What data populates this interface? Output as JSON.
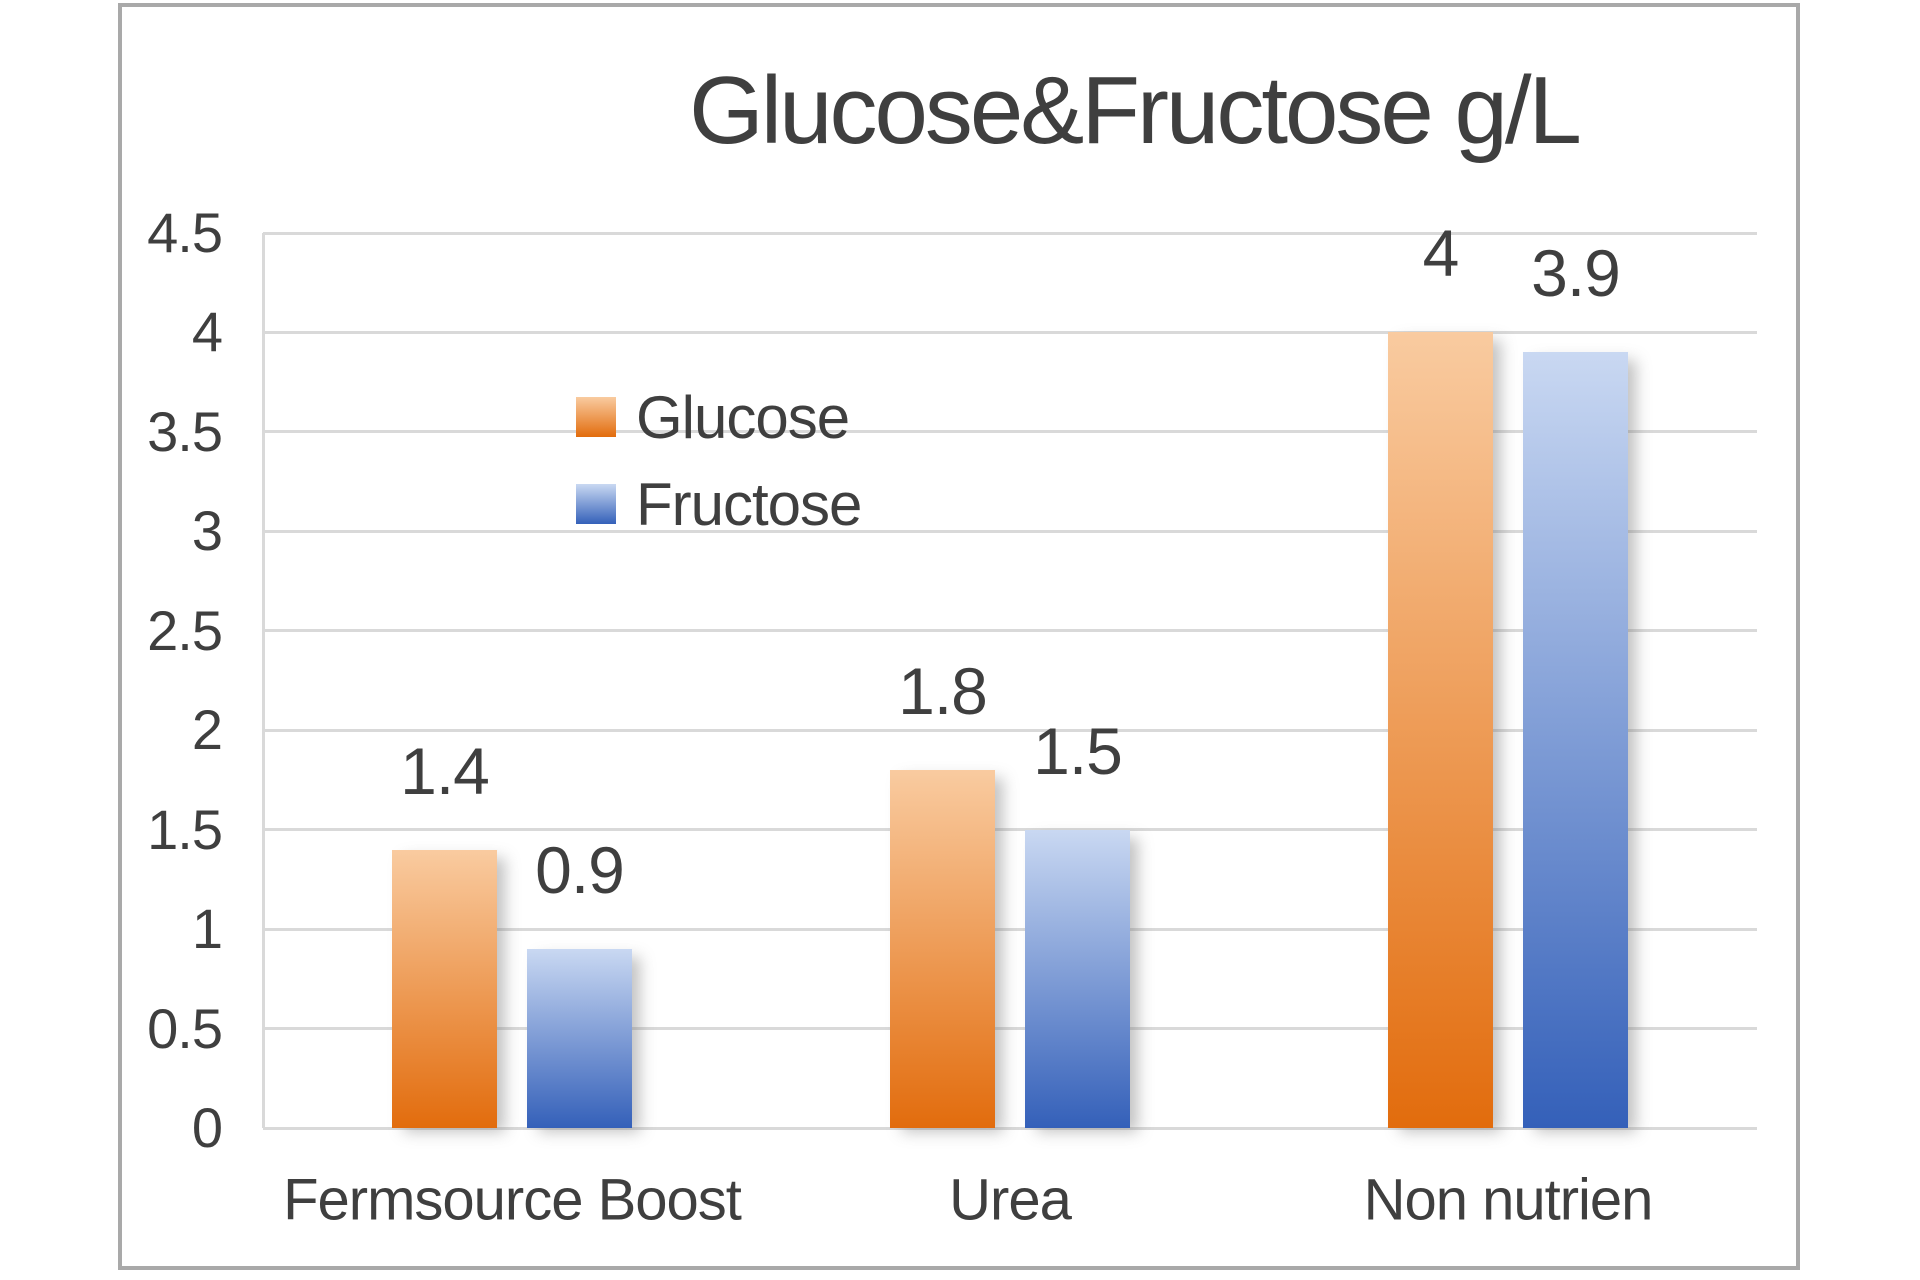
{
  "chart_data": {
    "type": "bar",
    "title": "Glucose&Fructose g/L",
    "categories": [
      "Fermsource Boost",
      "Urea",
      "Non nutrien"
    ],
    "series": [
      {
        "name": "Glucose",
        "values": [
          1.4,
          1.8,
          4
        ],
        "data_labels": [
          "1.4",
          "1.8",
          "4"
        ]
      },
      {
        "name": "Fructose",
        "values": [
          0.9,
          1.5,
          3.9
        ],
        "data_labels": [
          "0.9",
          "1.5",
          "3.9"
        ]
      }
    ],
    "xlabel": "",
    "ylabel": "",
    "ylim": [
      0,
      4.5
    ],
    "ytick_step": 0.5,
    "yticks": [
      "0",
      "0.5",
      "1",
      "1.5",
      "2",
      "2.5",
      "3",
      "3.5",
      "4",
      "4.5"
    ],
    "grid": true,
    "legend_position": "inside-upper-left"
  },
  "colors": {
    "text": "#3F3F3F",
    "gridline": "#D9D9D9",
    "frame_border": "#A9A9A9",
    "background": "#FFFFFF",
    "glucose_gradient_top": "#F9CBA0",
    "glucose_gradient_bottom": "#E26C0D",
    "fructose_gradient_top": "#C9D8F2",
    "fructose_gradient_bottom": "#3460B9"
  }
}
